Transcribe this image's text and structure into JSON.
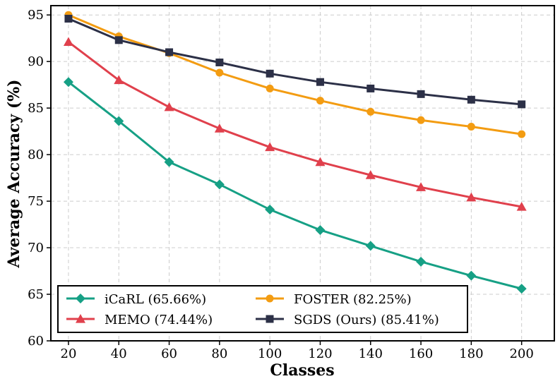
{
  "chart_data": {
    "type": "line",
    "title": "",
    "xlabel": "Classes",
    "ylabel": "Average Accuracy (%)",
    "categories": [
      20,
      40,
      60,
      80,
      100,
      120,
      140,
      160,
      180,
      200
    ],
    "xlim": [
      13,
      213
    ],
    "ylim": [
      60,
      96
    ],
    "yticks": [
      60,
      65,
      70,
      75,
      80,
      85,
      90,
      95
    ],
    "grid": true,
    "legend_position": "bottom-left",
    "series": [
      {
        "name": "iCaRL (65.66%)",
        "color": "#16a085",
        "marker": "diamond",
        "values": [
          87.8,
          83.6,
          79.2,
          76.8,
          74.1,
          71.9,
          70.2,
          68.5,
          67.0,
          65.6
        ]
      },
      {
        "name": "MEMO (74.44%)",
        "color": "#e0404c",
        "marker": "triangle",
        "values": [
          92.1,
          88.0,
          85.1,
          82.8,
          80.8,
          79.2,
          77.8,
          76.5,
          75.4,
          74.4
        ]
      },
      {
        "name": "FOSTER (82.25%)",
        "color": "#f39c12",
        "marker": "circle",
        "values": [
          95.0,
          92.7,
          90.9,
          88.8,
          87.1,
          85.8,
          84.6,
          83.7,
          83.0,
          82.2
        ]
      },
      {
        "name": "SGDS (Ours) (85.41%)",
        "color": "#2c3047",
        "marker": "square",
        "values": [
          94.6,
          92.3,
          91.0,
          89.9,
          88.7,
          87.8,
          87.1,
          86.5,
          85.9,
          85.4
        ]
      }
    ]
  }
}
